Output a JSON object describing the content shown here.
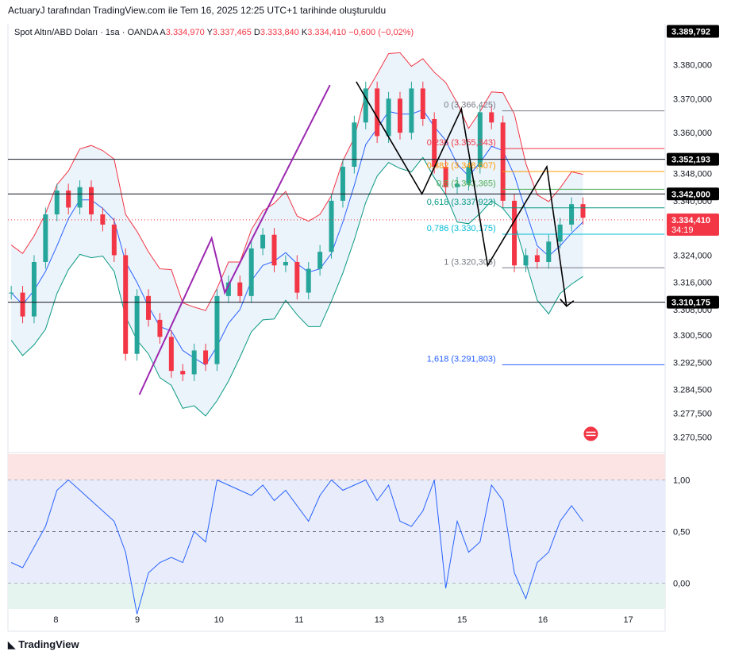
{
  "header": {
    "attribution": "ActuaryJ tarafından TradingView.com ile Tem 16, 2025 12:25 UTC+1 tarihinde oluşturuldu"
  },
  "legend": {
    "symbol": "Spot Altın/ABD Doları · 1sa · OANDA",
    "open_label": "A",
    "open": "3.334,970",
    "high_label": "Y",
    "high": "3.337,465",
    "low_label": "D",
    "low": "3.333,840",
    "close_label": "K",
    "close": "3.334,410",
    "change": "−0,600 (−0,02%)"
  },
  "footer": {
    "brand": "TradingView"
  },
  "colors": {
    "up": "#26a69a",
    "down": "#f23645",
    "bb_upper": "#f23645",
    "bb_lower": "#089981",
    "bb_mid": "#2962ff",
    "bb_fill": "#e3eefa",
    "pattern": "#9c27b0",
    "rsi": "#2962ff",
    "rsi_top": "#fde4e4",
    "rsi_mid": "#e8ecfb",
    "rsi_bot": "#e6f4ef"
  },
  "chart_data": [
    {
      "type": "candlestick",
      "title": "Spot Altın/ABD Doları · 1sa · OANDA",
      "xlabel": "",
      "ylabel": "",
      "x_ticks": [
        "8",
        "9",
        "10",
        "11",
        "13",
        "15",
        "16",
        "17"
      ],
      "y_ticks": [
        "3.380,000",
        "3.370,000",
        "3.360,000",
        "3.348,000",
        "3.340,000",
        "3.324,000",
        "3.316,000",
        "3.308,000",
        "3.300,500",
        "3.292,500",
        "3.284,500",
        "3.277,500",
        "3.270,500"
      ],
      "ylim": [
        3266,
        3392
      ],
      "price_badges": [
        {
          "label": "3.389,792",
          "value": 3389.792,
          "style": "black"
        },
        {
          "label": "3.352,193",
          "value": 3352.193,
          "style": "black"
        },
        {
          "label": "3.342,000",
          "value": 3342.0,
          "style": "black"
        },
        {
          "label": "3.334,410",
          "sub": "34:19",
          "value": 3334.41,
          "style": "red"
        },
        {
          "label": "3.310,175",
          "value": 3310.175,
          "style": "black"
        }
      ],
      "horizontal_lines": [
        3352.193,
        3342.0,
        3310.175
      ],
      "fibonacci": [
        {
          "label": "0 (3.366,425)",
          "value": 3366.425,
          "color": "#787b86"
        },
        {
          "label": "0,236 (3.355,343)",
          "value": 3355.343,
          "color": "#f23645"
        },
        {
          "label": "0,382 (3.348,607)",
          "value": 3348.607,
          "color": "#ff9800"
        },
        {
          "label": "0,5 (3.343,365)",
          "value": 3343.365,
          "color": "#4caf50"
        },
        {
          "label": "0,618 (3.337,923)",
          "value": 3337.923,
          "color": "#089981"
        },
        {
          "label": "0,786 (3.330,175)",
          "value": 3330.175,
          "color": "#00bcd4"
        },
        {
          "label": "1 (3.320,305)",
          "value": 3320.305,
          "color": "#787b86"
        },
        {
          "label": "1,618 (3.291,803)",
          "value": 3291.803,
          "color": "#2962ff"
        }
      ],
      "pattern_purple": [
        [
          0.2,
          3283
        ],
        [
          0.31,
          3329
        ],
        [
          0.33,
          3313
        ],
        [
          0.49,
          3374
        ]
      ],
      "pattern_black": [
        [
          0.53,
          3375
        ],
        [
          0.63,
          3342
        ],
        [
          0.69,
          3367
        ],
        [
          0.73,
          3321
        ],
        [
          0.82,
          3350
        ],
        [
          0.85,
          3309
        ]
      ],
      "ohlc_path_close": [
        3313,
        3306,
        3322,
        3336,
        3343,
        3338,
        3344,
        3336,
        3333,
        3324,
        3295,
        3312,
        3305,
        3300,
        3290,
        3289,
        3296,
        3292,
        3312,
        3316,
        3312,
        3326,
        3330,
        3321,
        3322,
        3313,
        3320,
        3325,
        3340,
        3350,
        3363,
        3373,
        3359,
        3370,
        3360,
        3373,
        3364,
        3350,
        3344,
        3345,
        3350,
        3366,
        3363,
        3340,
        3321,
        3324,
        3322,
        3328,
        3333,
        3339,
        3335
      ]
    },
    {
      "type": "line",
      "title": "",
      "series_name": "",
      "y_ticks": [
        "1,00",
        "0,50",
        "0,00"
      ],
      "ylim": [
        -0.25,
        1.25
      ],
      "values": [
        0.2,
        0.15,
        0.35,
        0.55,
        0.9,
        1.0,
        0.9,
        0.8,
        0.7,
        0.6,
        0.3,
        -0.3,
        0.1,
        0.2,
        0.25,
        0.2,
        0.5,
        0.4,
        1.0,
        0.95,
        0.9,
        0.85,
        0.95,
        0.8,
        0.9,
        0.75,
        0.6,
        0.85,
        1.0,
        0.9,
        0.95,
        1.0,
        0.8,
        0.95,
        0.6,
        0.55,
        0.7,
        1.0,
        -0.05,
        0.6,
        0.3,
        0.4,
        0.95,
        0.8,
        0.1,
        -0.15,
        0.2,
        0.3,
        0.6,
        0.75,
        0.6
      ]
    }
  ]
}
